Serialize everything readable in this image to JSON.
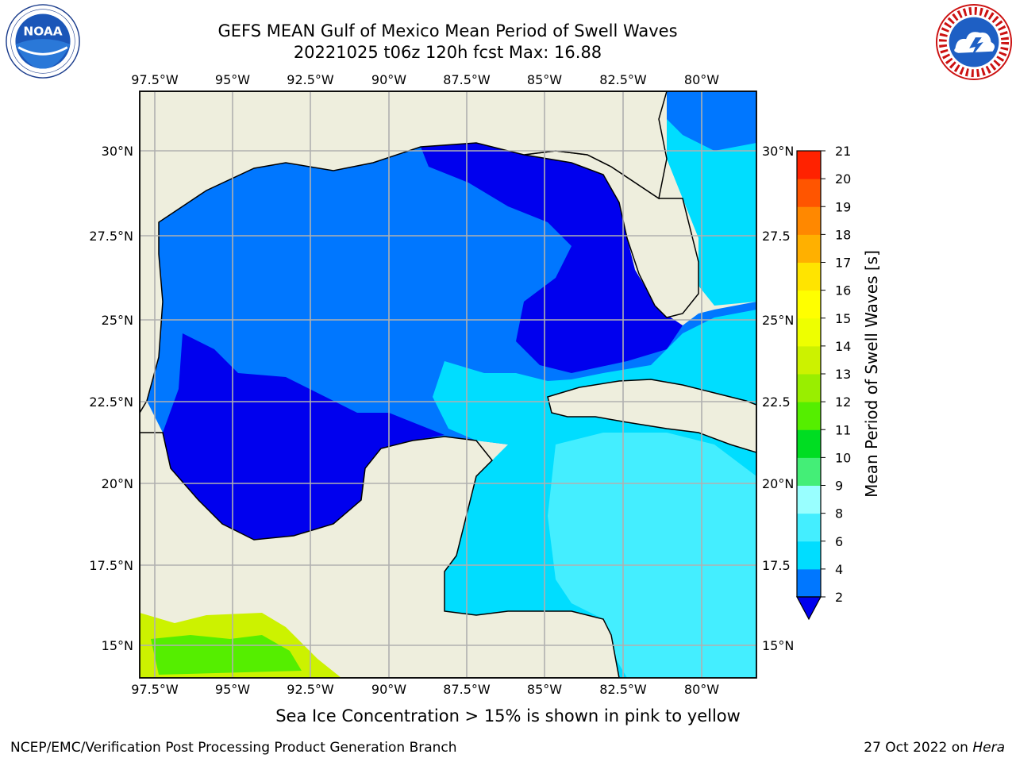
{
  "header": {
    "title_line1": "GEFS MEAN Gulf of Mexico Mean Period of Swell Waves",
    "title_line2": "20221025 t06z 120h fcst   Max: 16.88"
  },
  "logos": {
    "noaa": {
      "name": "noaa-logo",
      "text": "NOAA",
      "ring_text": "NATIONAL OCEANIC AND ATMOSPHERIC ADMINISTRATION · U.S. DEPARTMENT OF COMMERCE"
    },
    "nws": {
      "name": "nws-logo",
      "ring_text": "NATIONAL WEATHER SERVICE"
    }
  },
  "map": {
    "lon_labels": [
      "97.5°W",
      "95°W",
      "92.5°W",
      "90°W",
      "87.5°W",
      "85°W",
      "82.5°W",
      "80°W"
    ],
    "lat_labels_left": [
      "30°N",
      "27.5°N",
      "25°N",
      "22.5°N",
      "20°N",
      "17.5°N",
      "15°N"
    ],
    "lat_labels_right": [
      "30°N",
      "27.5",
      "25°N",
      "22.5",
      "20°N",
      "17.5",
      "15°N"
    ],
    "colors": {
      "land": "#eeeedd",
      "grid": "#b0b0b0"
    }
  },
  "colorbar": {
    "label": "Mean Period of Swell Waves [s]",
    "ticks": [
      "2",
      "4",
      "6",
      "8",
      "9",
      "10",
      "11",
      "12",
      "13",
      "14",
      "15",
      "16",
      "17",
      "18",
      "19",
      "20",
      "21"
    ],
    "colors": [
      "#0077ff",
      "#00ddff",
      "#44eeff",
      "#99ffff",
      "#44ee77",
      "#00dd22",
      "#55ee00",
      "#99ee00",
      "#ccf200",
      "#eeff00",
      "#ffff00",
      "#ffe400",
      "#ffb000",
      "#ff8800",
      "#ff5500",
      "#ff2200"
    ],
    "under_color": "#0000ee"
  },
  "footer": {
    "note": "Sea Ice Concentration > 15% is shown in pink to yellow",
    "left": "NCEP/EMC/Verification Post Processing Product Generation Branch",
    "right_date": "27 Oct 2022 on ",
    "right_host": "Hera"
  }
}
